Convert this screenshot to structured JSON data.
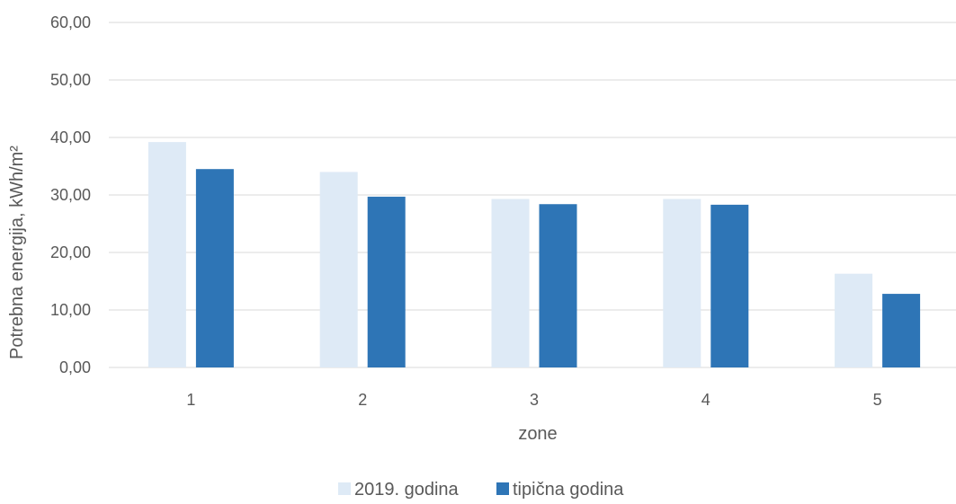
{
  "chart_data": {
    "type": "bar",
    "categories": [
      "1",
      "2",
      "3",
      "4",
      "5"
    ],
    "series": [
      {
        "name": "2019. godina",
        "color": "#deeaf6",
        "values": [
          39.2,
          34.0,
          29.3,
          29.3,
          16.3
        ]
      },
      {
        "name": "tipična godina",
        "color": "#2e75b6",
        "values": [
          34.5,
          29.7,
          28.4,
          28.3,
          12.8
        ]
      }
    ],
    "xlabel": "zone",
    "ylabel": "Potrebna energija, kWh/m²",
    "ylim": [
      0,
      60
    ],
    "yticks": [
      "0,00",
      "10,00",
      "20,00",
      "30,00",
      "40,00",
      "50,00",
      "60,00"
    ],
    "grid": true,
    "legend_position": "bottom"
  }
}
